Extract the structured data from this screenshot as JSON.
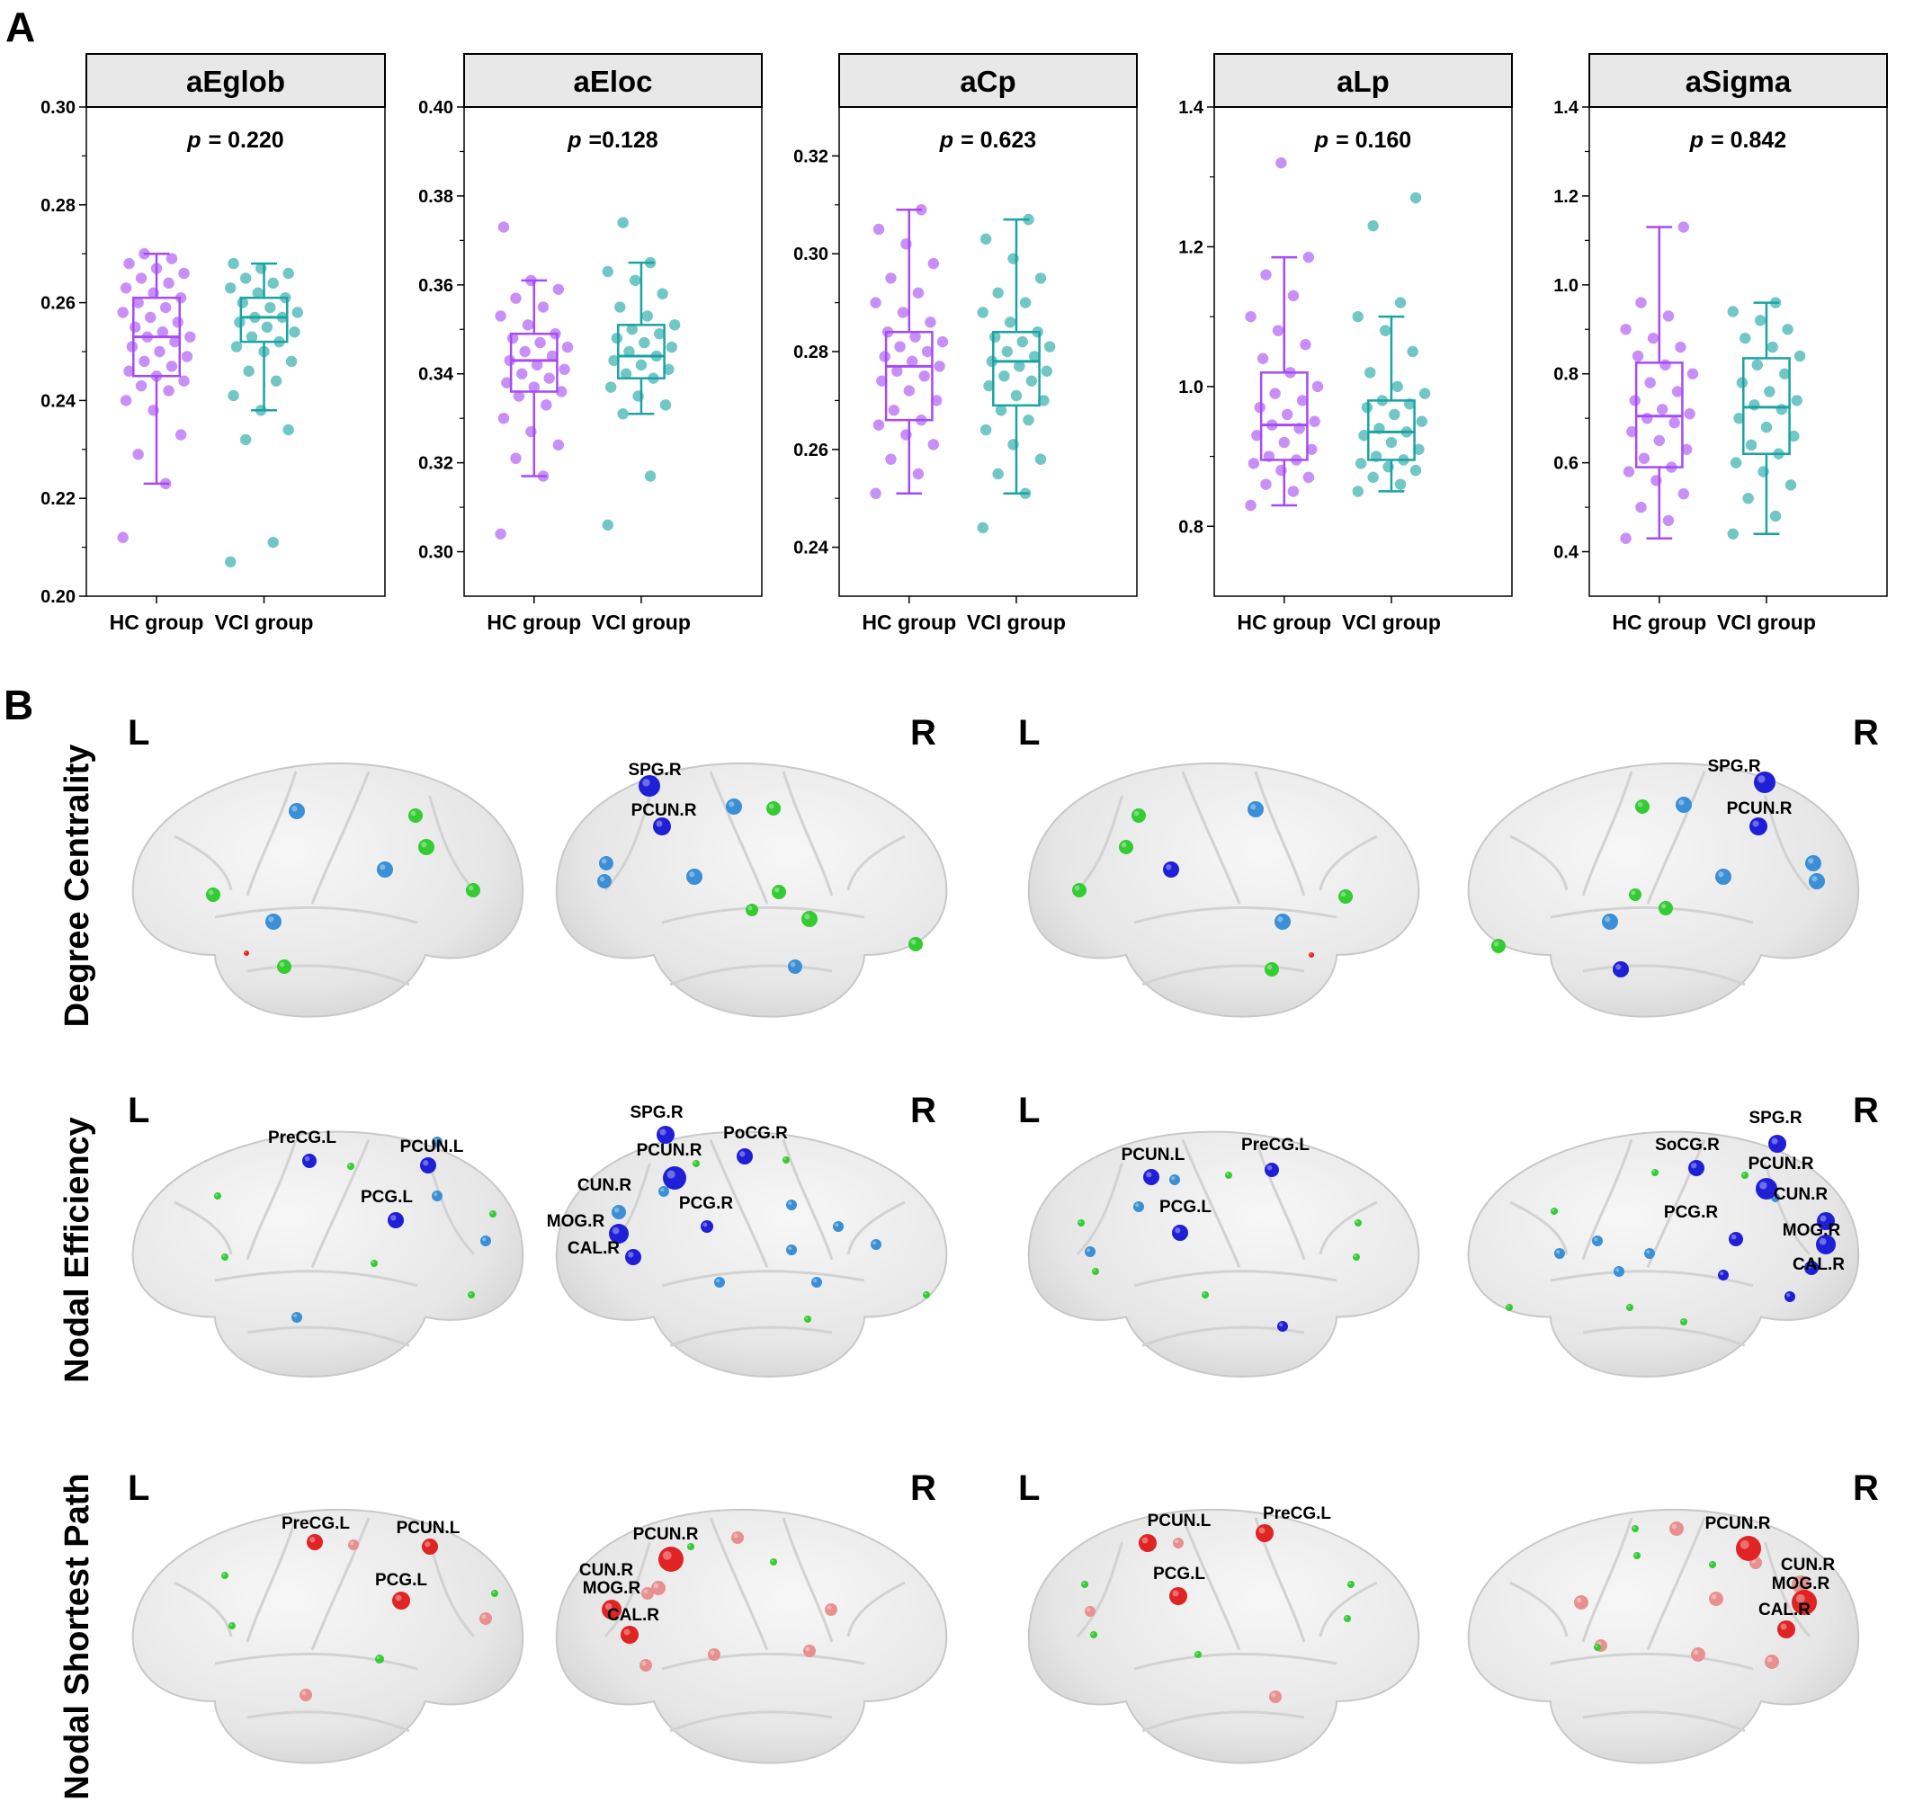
{
  "panel_a_label": "A",
  "panel_b_label": "B",
  "colors": {
    "hc": "#a64bf4",
    "vci": "#1aa3a3",
    "strip_fill": "#e8e8e8",
    "node_green": "#33cc33",
    "node_lightblue": "#3a8fd6",
    "node_blue": "#1f1fd8",
    "node_red": "#e02424",
    "node_pink": "#e8908f"
  },
  "chart_data": [
    {
      "type": "box",
      "title": "aEglob",
      "p_italic": "p",
      "p_text": "= 0.220",
      "categories": [
        "HC group",
        "VCI group"
      ],
      "ylim": [
        0.2,
        0.3
      ],
      "yticks": [
        0.2,
        0.22,
        0.24,
        0.26,
        0.28,
        0.3
      ],
      "ytick_labels": [
        "0.20",
        "0.22",
        "0.24",
        "0.26",
        "0.28",
        "0.30"
      ],
      "series": [
        {
          "group": "HC group",
          "whisker_low": 0.223,
          "q1": 0.245,
          "median": 0.253,
          "q3": 0.261,
          "whisker_high": 0.27,
          "points": [
            0.212,
            0.223,
            0.229,
            0.233,
            0.238,
            0.24,
            0.242,
            0.243,
            0.244,
            0.245,
            0.246,
            0.247,
            0.248,
            0.249,
            0.25,
            0.251,
            0.252,
            0.253,
            0.253,
            0.254,
            0.255,
            0.256,
            0.257,
            0.258,
            0.259,
            0.26,
            0.261,
            0.262,
            0.263,
            0.264,
            0.265,
            0.266,
            0.267,
            0.268,
            0.269,
            0.27
          ]
        },
        {
          "group": "VCI group",
          "whisker_low": 0.238,
          "q1": 0.252,
          "median": 0.257,
          "q3": 0.261,
          "whisker_high": 0.268,
          "points": [
            0.207,
            0.211,
            0.232,
            0.234,
            0.238,
            0.241,
            0.244,
            0.246,
            0.248,
            0.25,
            0.251,
            0.252,
            0.253,
            0.254,
            0.255,
            0.256,
            0.257,
            0.257,
            0.258,
            0.259,
            0.26,
            0.261,
            0.262,
            0.263,
            0.264,
            0.265,
            0.266,
            0.267,
            0.268
          ]
        }
      ]
    },
    {
      "type": "box",
      "title": "aEloc",
      "p_italic": "p",
      "p_text": "=0.128",
      "categories": [
        "HC group",
        "VCI group"
      ],
      "ylim": [
        0.29,
        0.4
      ],
      "yticks": [
        0.3,
        0.32,
        0.34,
        0.36,
        0.38,
        0.4
      ],
      "ytick_labels": [
        "0.30",
        "0.32",
        "0.34",
        "0.36",
        "0.38",
        "0.40"
      ],
      "series": [
        {
          "group": "HC group",
          "whisker_low": 0.317,
          "q1": 0.336,
          "median": 0.343,
          "q3": 0.349,
          "whisker_high": 0.361,
          "points": [
            0.304,
            0.317,
            0.321,
            0.324,
            0.327,
            0.33,
            0.333,
            0.335,
            0.336,
            0.337,
            0.338,
            0.339,
            0.34,
            0.341,
            0.342,
            0.343,
            0.344,
            0.345,
            0.346,
            0.347,
            0.348,
            0.349,
            0.351,
            0.353,
            0.355,
            0.357,
            0.359,
            0.361,
            0.373
          ]
        },
        {
          "group": "VCI group",
          "whisker_low": 0.331,
          "q1": 0.339,
          "median": 0.344,
          "q3": 0.351,
          "whisker_high": 0.365,
          "points": [
            0.306,
            0.317,
            0.331,
            0.333,
            0.335,
            0.337,
            0.339,
            0.34,
            0.341,
            0.342,
            0.343,
            0.344,
            0.345,
            0.346,
            0.347,
            0.348,
            0.349,
            0.35,
            0.351,
            0.353,
            0.355,
            0.358,
            0.361,
            0.363,
            0.365,
            0.374
          ]
        }
      ]
    },
    {
      "type": "box",
      "title": "aCp",
      "p_italic": "p",
      "p_text": "= 0.623",
      "categories": [
        "HC group",
        "VCI group"
      ],
      "ylim": [
        0.23,
        0.33
      ],
      "yticks": [
        0.24,
        0.26,
        0.28,
        0.3,
        0.32
      ],
      "ytick_labels": [
        "0.24",
        "0.26",
        "0.28",
        "0.30",
        "0.32"
      ],
      "series": [
        {
          "group": "HC group",
          "whisker_low": 0.251,
          "q1": 0.266,
          "median": 0.277,
          "q3": 0.284,
          "whisker_high": 0.309,
          "points": [
            0.251,
            0.255,
            0.258,
            0.261,
            0.263,
            0.265,
            0.266,
            0.268,
            0.27,
            0.272,
            0.274,
            0.275,
            0.276,
            0.277,
            0.278,
            0.279,
            0.28,
            0.281,
            0.282,
            0.283,
            0.284,
            0.286,
            0.288,
            0.29,
            0.292,
            0.295,
            0.298,
            0.302,
            0.305,
            0.309
          ]
        },
        {
          "group": "VCI group",
          "whisker_low": 0.251,
          "q1": 0.269,
          "median": 0.278,
          "q3": 0.284,
          "whisker_high": 0.307,
          "points": [
            0.244,
            0.251,
            0.255,
            0.258,
            0.261,
            0.264,
            0.266,
            0.268,
            0.27,
            0.271,
            0.273,
            0.274,
            0.275,
            0.276,
            0.277,
            0.278,
            0.279,
            0.28,
            0.281,
            0.282,
            0.283,
            0.284,
            0.286,
            0.288,
            0.29,
            0.292,
            0.295,
            0.299,
            0.303,
            0.307
          ]
        }
      ]
    },
    {
      "type": "box",
      "title": "aLp",
      "p_italic": "p",
      "p_text": "= 0.160",
      "categories": [
        "HC group",
        "VCI group"
      ],
      "ylim": [
        0.7,
        1.4
      ],
      "yticks": [
        0.8,
        1.0,
        1.2,
        1.4
      ],
      "ytick_labels": [
        "0.8",
        "1.0",
        "1.2",
        "1.4"
      ],
      "series": [
        {
          "group": "HC group",
          "whisker_low": 0.83,
          "q1": 0.895,
          "median": 0.945,
          "q3": 1.02,
          "whisker_high": 1.185,
          "points": [
            0.83,
            0.85,
            0.86,
            0.87,
            0.88,
            0.89,
            0.895,
            0.9,
            0.91,
            0.92,
            0.93,
            0.94,
            0.945,
            0.95,
            0.96,
            0.97,
            0.98,
            0.99,
            1.0,
            1.02,
            1.04,
            1.06,
            1.08,
            1.1,
            1.13,
            1.16,
            1.185,
            1.32
          ]
        },
        {
          "group": "VCI group",
          "whisker_low": 0.85,
          "q1": 0.895,
          "median": 0.935,
          "q3": 0.98,
          "whisker_high": 1.1,
          "points": [
            0.85,
            0.86,
            0.87,
            0.88,
            0.885,
            0.89,
            0.895,
            0.9,
            0.91,
            0.92,
            0.93,
            0.935,
            0.94,
            0.95,
            0.96,
            0.97,
            0.975,
            0.98,
            0.99,
            1.0,
            1.02,
            1.05,
            1.08,
            1.1,
            1.12,
            1.23,
            1.27
          ]
        }
      ]
    },
    {
      "type": "box",
      "title": "aSigma",
      "p_italic": "p",
      "p_text": "= 0.842",
      "categories": [
        "HC group",
        "VCI group"
      ],
      "ylim": [
        0.3,
        1.4
      ],
      "yticks": [
        0.4,
        0.6,
        0.8,
        1.0,
        1.2,
        1.4
      ],
      "ytick_labels": [
        "0.4",
        "0.6",
        "0.8",
        "1.0",
        "1.2",
        "1.4"
      ],
      "series": [
        {
          "group": "HC group",
          "whisker_low": 0.43,
          "q1": 0.59,
          "median": 0.705,
          "q3": 0.825,
          "whisker_high": 1.13,
          "points": [
            0.43,
            0.47,
            0.5,
            0.53,
            0.56,
            0.58,
            0.59,
            0.61,
            0.63,
            0.65,
            0.67,
            0.69,
            0.7,
            0.71,
            0.72,
            0.74,
            0.76,
            0.78,
            0.8,
            0.82,
            0.84,
            0.86,
            0.88,
            0.9,
            0.93,
            0.96,
            1.13
          ]
        },
        {
          "group": "VCI group",
          "whisker_low": 0.44,
          "q1": 0.62,
          "median": 0.725,
          "q3": 0.835,
          "whisker_high": 0.96,
          "points": [
            0.44,
            0.48,
            0.52,
            0.55,
            0.58,
            0.6,
            0.62,
            0.64,
            0.66,
            0.68,
            0.7,
            0.72,
            0.73,
            0.74,
            0.76,
            0.78,
            0.8,
            0.82,
            0.84,
            0.86,
            0.88,
            0.9,
            0.92,
            0.94,
            0.96
          ]
        }
      ]
    }
  ],
  "panel_b": {
    "rows": [
      {
        "label": "Degree Centrality",
        "hemi_left": "L",
        "hemi_right": "R",
        "labels": [
          "SPG.R",
          "PCUN.R",
          "SPG.R",
          "PCUN.R"
        ]
      },
      {
        "label": "Nodal Efficiency",
        "hemi_left": "L",
        "hemi_right": "R",
        "labels": [
          "PreCG.L",
          "PCUN.L",
          "PCG.L",
          "SPG.R",
          "PoCG.R",
          "PCUN.R",
          "CUN.R",
          "MOG.R",
          "CAL.R",
          "PCG.R",
          "PCUN.L",
          "PreCG.L",
          "PCG.L",
          "SPG.R",
          "SoCG.R",
          "PCUN.R",
          "CUN.R",
          "MOG.R",
          "CAL.R",
          "PCG.R"
        ]
      },
      {
        "label": "Nodal Shortest Path",
        "hemi_left": "L",
        "hemi_right": "R",
        "labels": [
          "PreCG.L",
          "PCUN.L",
          "PCG.L",
          "PCUN.R",
          "CUN.R",
          "MOG.R",
          "CAL.R",
          "PCUN.L",
          "PreCG.L",
          "PCG.L",
          "PCUN.R",
          "CUN.R",
          "MOG.R",
          "CAL.R"
        ]
      }
    ]
  }
}
